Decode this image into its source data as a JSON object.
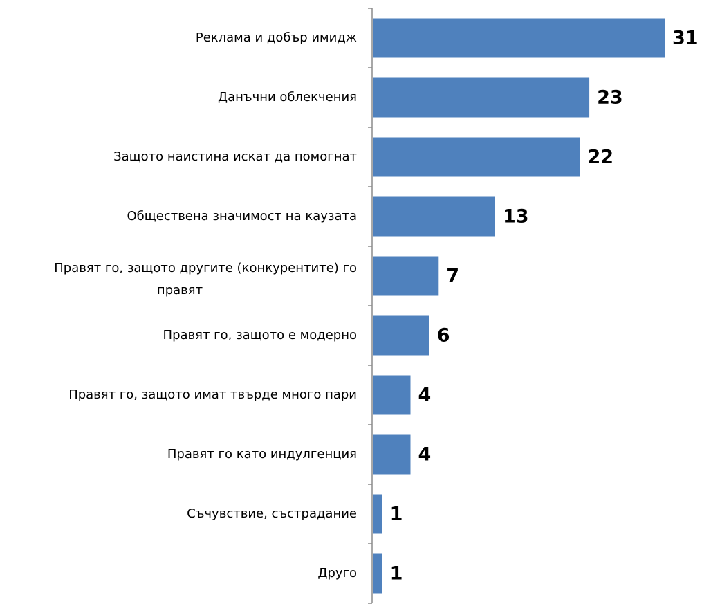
{
  "chart_data": {
    "type": "bar",
    "orientation": "horizontal",
    "categories": [
      "Реклама и добър имидж",
      "Данъчни облекчения",
      "Защото наистина искат да помогнат",
      "Обществена значимост на каузата",
      "Правят го, защото другите (конкурентите) го правят",
      "Правят го, защото е модерно",
      "Правят го, защото имат твърде много пари",
      "Правят го като индулгенция",
      "Съчувствие, състрадание",
      "Друго"
    ],
    "values": [
      31,
      23,
      22,
      13,
      7,
      6,
      4,
      4,
      1,
      1
    ],
    "value_labels": [
      "31",
      "23",
      "22",
      "13",
      "7",
      "6",
      "4",
      "4",
      "1",
      "1"
    ],
    "bar_color": "#4f81bd",
    "title": "",
    "xlabel": "",
    "ylabel": "",
    "xlim": [
      0,
      31
    ],
    "grid": false,
    "legend": "none"
  }
}
